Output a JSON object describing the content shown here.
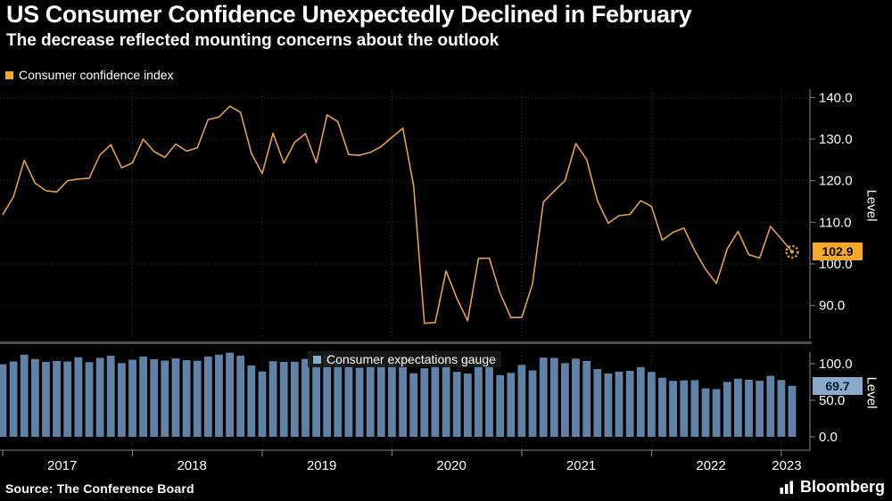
{
  "header": {
    "title": "US Consumer Confidence Unexpectedly Declined in February",
    "subtitle": "The decrease reflected mounting concerns about the outlook"
  },
  "footer": {
    "source": "Source: The Conference Board",
    "logo": "Bloomberg"
  },
  "colors": {
    "background": "#000000",
    "text": "#ffffff",
    "line": "#e2a04e",
    "line_badge_bg": "#f7a829",
    "line_badge_text": "#000000",
    "bar": "#5f82a6",
    "bar_badge_bg": "#8aa9cc",
    "bar_badge_text": "#0a1a2e",
    "grid_h": "#2e2e2e",
    "grid_v": "#3a3a3a",
    "axis": "#888888",
    "divider": "#4d4d4d"
  },
  "xaxis": {
    "start": "2017-01",
    "end": "2023-02",
    "frequency": "monthly",
    "years": [
      {
        "label": "2017",
        "start_index": 0
      },
      {
        "label": "2018",
        "start_index": 12
      },
      {
        "label": "2019",
        "start_index": 24
      },
      {
        "label": "2020",
        "start_index": 36
      },
      {
        "label": "2021",
        "start_index": 48
      },
      {
        "label": "2022",
        "start_index": 60
      },
      {
        "label": "2023",
        "start_index": 72
      }
    ]
  },
  "chart_data": [
    {
      "type": "line",
      "legend": "Consumer confidence index",
      "ylabel": "Level",
      "ylim": [
        82,
        142
      ],
      "yticks": [
        {
          "v": 140,
          "label": "140.0"
        },
        {
          "v": 130,
          "label": "130.0"
        },
        {
          "v": 120,
          "label": "120.0"
        },
        {
          "v": 110,
          "label": "110.0"
        },
        {
          "v": 100,
          "label": "100.0"
        },
        {
          "v": 90,
          "label": "90.0"
        }
      ],
      "values": [
        111.8,
        116.1,
        124.9,
        119.4,
        117.6,
        117.3,
        120.0,
        120.4,
        120.6,
        126.2,
        128.6,
        123.1,
        124.3,
        130.0,
        127.0,
        125.6,
        128.8,
        127.1,
        127.9,
        134.7,
        135.3,
        137.9,
        136.4,
        126.6,
        121.7,
        131.4,
        124.2,
        129.2,
        131.3,
        124.3,
        135.8,
        134.2,
        126.3,
        126.1,
        126.8,
        128.2,
        130.4,
        132.6,
        118.8,
        85.7,
        85.9,
        98.3,
        91.7,
        86.3,
        101.3,
        101.4,
        92.9,
        87.1,
        87.1,
        95.2,
        114.9,
        117.5,
        120.0,
        128.9,
        125.1,
        115.2,
        109.8,
        111.6,
        111.9,
        115.2,
        113.8,
        105.7,
        107.6,
        108.6,
        103.2,
        98.7,
        95.3,
        103.6,
        107.8,
        102.2,
        101.4,
        109.0,
        106.0,
        102.9
      ],
      "last_value_label": "102.9"
    },
    {
      "type": "bar",
      "legend": "Consumer expectations gauge",
      "ylabel": "Level",
      "ylim": [
        0,
        116
      ],
      "yticks": [
        {
          "v": 100,
          "label": "100.0"
        },
        {
          "v": 50,
          "label": "50.0"
        },
        {
          "v": 0,
          "label": "0.0"
        }
      ],
      "values": [
        99.3,
        103.0,
        112.3,
        106.4,
        102.6,
        103.6,
        103.0,
        109.0,
        102.2,
        108.1,
        111.0,
        100.8,
        105.5,
        109.7,
        106.2,
        104.3,
        107.2,
        104.8,
        104.0,
        109.9,
        112.5,
        115.1,
        111.0,
        97.7,
        89.4,
        103.4,
        102.4,
        102.7,
        106.6,
        97.6,
        112.4,
        106.4,
        96.8,
        94.5,
        97.9,
        100.0,
        102.5,
        107.8,
        86.8,
        93.8,
        97.6,
        106.0,
        88.9,
        86.6,
        102.9,
        98.2,
        84.3,
        87.5,
        98.4,
        90.9,
        108.3,
        107.9,
        100.9,
        107.0,
        103.8,
        92.8,
        86.6,
        89.0,
        90.2,
        95.4,
        88.8,
        80.8,
        76.6,
        77.2,
        77.5,
        66.4,
        65.3,
        75.1,
        79.5,
        78.1,
        76.7,
        83.4,
        77.8,
        69.7
      ],
      "last_value_label": "69.7"
    }
  ]
}
